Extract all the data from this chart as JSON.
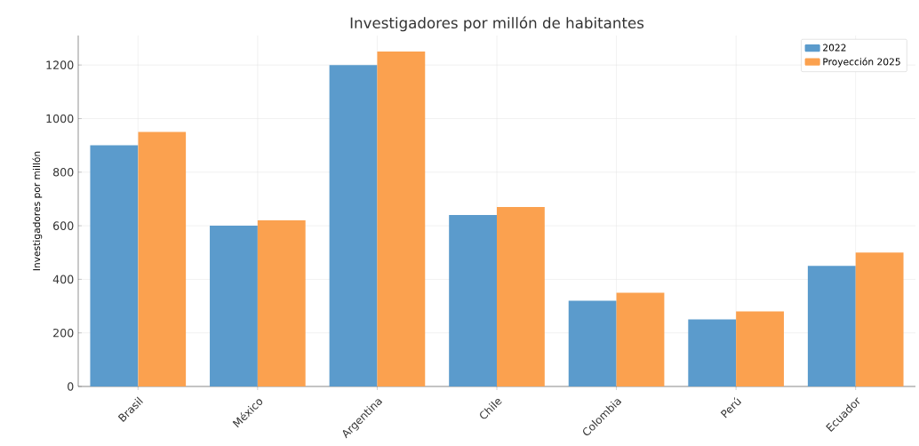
{
  "chart_data": {
    "type": "bar",
    "title": "Investigadores por millón de habitantes",
    "ylabel": "Investigadores por millón",
    "categories": [
      "Brasil",
      "México",
      "Argentina",
      "Chile",
      "Colombia",
      "Perú",
      "Ecuador"
    ],
    "series": [
      {
        "name": "2022",
        "color": "#5b9bcc",
        "values": [
          900,
          600,
          1200,
          640,
          320,
          250,
          450
        ]
      },
      {
        "name": "Proyección 2025",
        "color": "#fba14f",
        "values": [
          950,
          620,
          1250,
          670,
          350,
          280,
          500
        ]
      }
    ],
    "ylim": [
      0,
      1310
    ],
    "yticks": [
      0,
      200,
      400,
      600,
      800,
      1000,
      1200
    ],
    "grid": true,
    "legend": "top right"
  }
}
